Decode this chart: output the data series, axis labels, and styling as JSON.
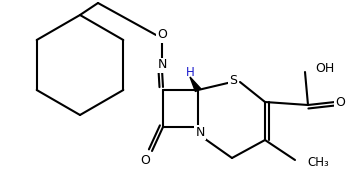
{
  "bg": "#ffffff",
  "lc": "#000000",
  "lw": 1.5,
  "figsize": [
    3.52,
    1.93
  ],
  "dpi": 100,
  "xlim": [
    0,
    352
  ],
  "ylim": [
    0,
    193
  ]
}
